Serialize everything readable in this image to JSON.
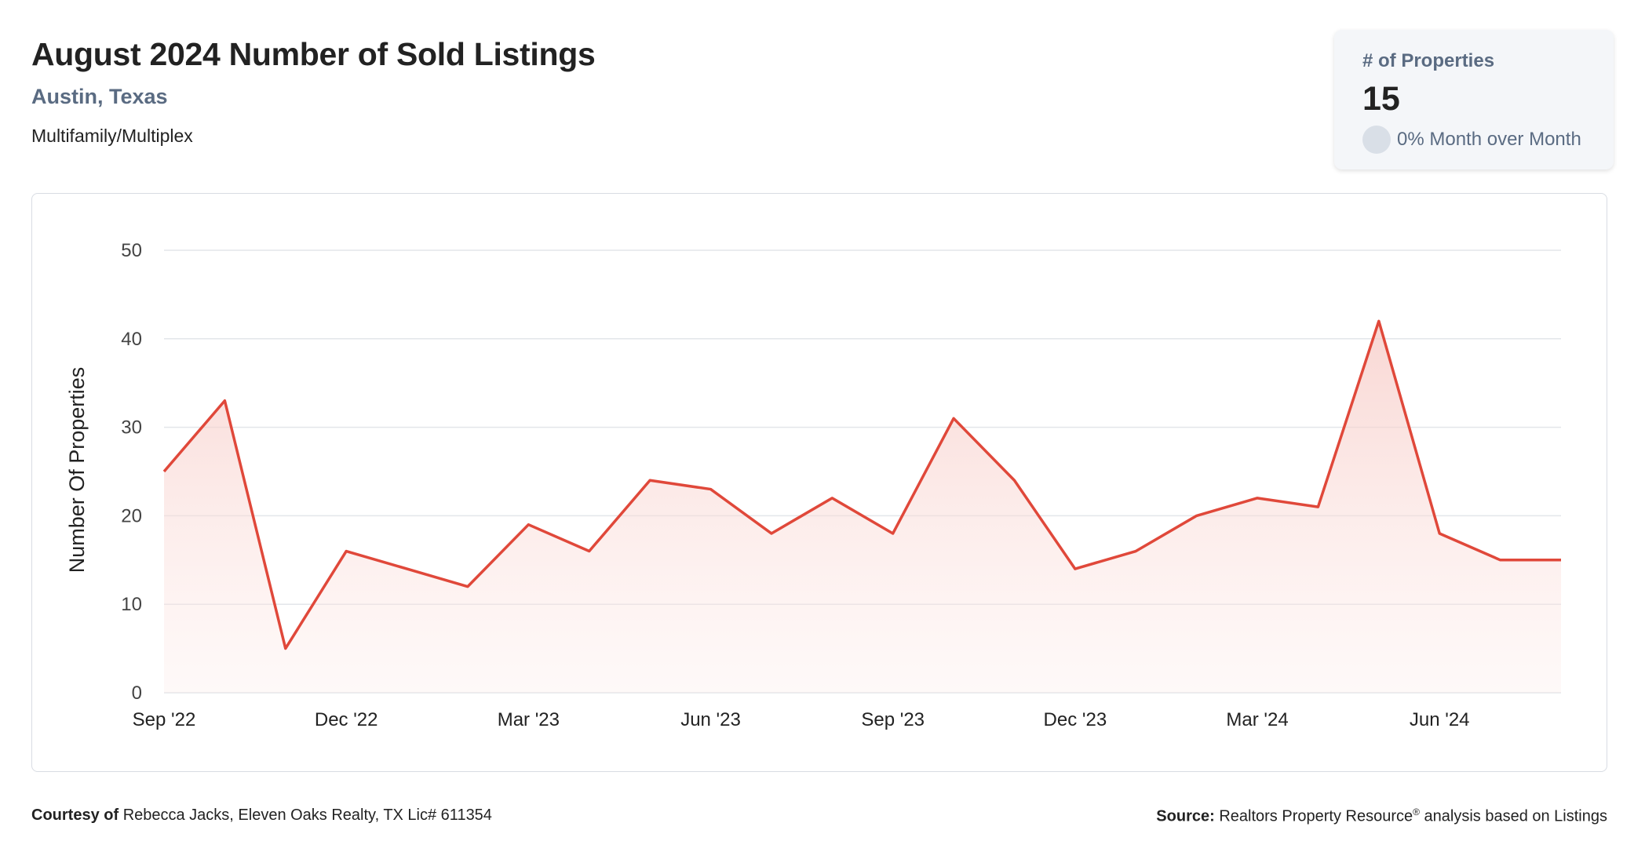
{
  "header": {
    "title": "August 2024 Number of Sold Listings",
    "location": "Austin, Texas",
    "category": "Multifamily/Multiplex"
  },
  "kpi": {
    "label": "# of Properties",
    "value": "15",
    "change": "0% Month over Month"
  },
  "footer": {
    "courtesy_label": "Courtesy of",
    "courtesy_text": "Rebecca Jacks, Eleven Oaks Realty, TX Lic# 611354",
    "source_label": "Source:",
    "source_text": "Realtors Property Resource",
    "source_mark": "®",
    "source_suffix": "analysis based on Listings"
  },
  "colors": {
    "line": "#e0483a",
    "fill_top": "#f6c9c4",
    "grid": "#e3e6ea",
    "axis_text": "#444444"
  },
  "chart_data": {
    "type": "area",
    "title": "",
    "xlabel": "",
    "ylabel": "Number Of Properties",
    "ylim": [
      0,
      50
    ],
    "yticks": [
      0,
      10,
      20,
      30,
      40,
      50
    ],
    "x": [
      "Sep '22",
      "Oct '22",
      "Nov '22",
      "Dec '22",
      "Jan '23",
      "Feb '23",
      "Mar '23",
      "Apr '23",
      "May '23",
      "Jun '23",
      "Jul '23",
      "Aug '23",
      "Sep '23",
      "Oct '23",
      "Nov '23",
      "Dec '23",
      "Jan '24",
      "Feb '24",
      "Mar '24",
      "Apr '24",
      "May '24",
      "Jun '24",
      "Jul '24",
      "Aug '24"
    ],
    "xticks": [
      "Sep '22",
      "Dec '22",
      "Mar '23",
      "Jun '23",
      "Sep '23",
      "Dec '23",
      "Mar '24",
      "Jun '24"
    ],
    "values": [
      25,
      33,
      5,
      16,
      14,
      12,
      19,
      16,
      24,
      23,
      18,
      22,
      18,
      31,
      24,
      14,
      16,
      20,
      22,
      21,
      42,
      18,
      15,
      15
    ],
    "grid": true,
    "legend": "none"
  }
}
